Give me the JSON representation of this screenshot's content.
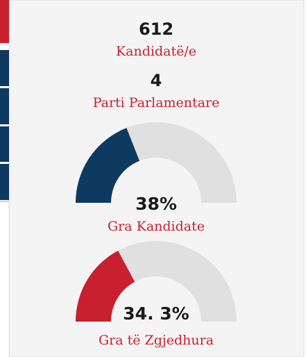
{
  "stats": [
    {
      "value": 612,
      "label": "Kandidatë/e"
    },
    {
      "value": 4,
      "label": "Parti Parlamentare"
    }
  ],
  "gauges": [
    {
      "value": 38,
      "value_label": "38%",
      "label": "Gra Kandidate",
      "color": "#0f3a60"
    },
    {
      "value": 34.3,
      "value_label": "34. 3%",
      "label": "Gra të Zgjedhura",
      "color": "#c8202f"
    }
  ],
  "range": [
    0,
    100
  ]
}
